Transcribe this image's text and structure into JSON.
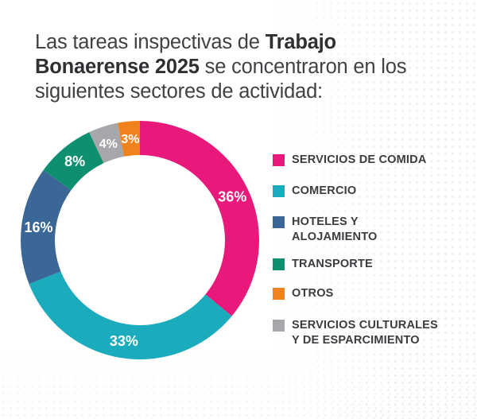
{
  "title": {
    "part1": "Las tareas inspectivas de ",
    "bold": "Trabajo Bonaerense 2025",
    "part2": " se concentraron en los siguientes sectores de actividad:"
  },
  "chart_data": {
    "type": "pie",
    "donut": true,
    "slices": [
      {
        "label": "SERVICIOS DE COMIDA",
        "value": 36,
        "value_label": "36%",
        "color": "#e8197a"
      },
      {
        "label": "COMERCIO",
        "value": 33,
        "value_label": "33%",
        "color": "#1aabbd"
      },
      {
        "label": "HOTELES Y\nALOJAMIENTO",
        "value": 16,
        "value_label": "16%",
        "color": "#3a6796"
      },
      {
        "label": "TRANSPORTE",
        "value": 8,
        "value_label": "8%",
        "color": "#0e9070"
      },
      {
        "label": "OTROS",
        "value": 3,
        "value_label": "3%",
        "color": "#f0821e"
      },
      {
        "label": "SERVICIOS CULTURALES\nY DE ESPARCIMIENTO",
        "value": 4,
        "value_label": "4%",
        "color": "#a5a7aa"
      }
    ],
    "draw_order": [
      0,
      1,
      2,
      3,
      5,
      4
    ],
    "legend_position": "right"
  }
}
